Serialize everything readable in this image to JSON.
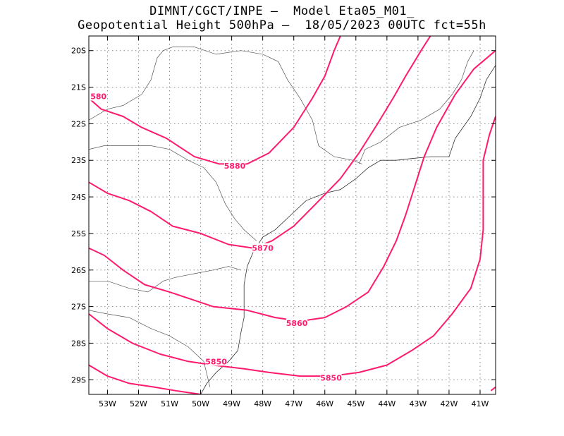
{
  "header": {
    "line1": "DIMNT/CGCT/INPE –  Model Eta05_M01_",
    "line2": "Geopotential Height 500hPa –  18/05/2023 00UTC fct=55h"
  },
  "map": {
    "lon_range": [
      -53.6,
      -40.5
    ],
    "lat_range": [
      -29.4,
      -19.6
    ],
    "grid": "dotted",
    "lon_ticks": [
      {
        "value": -53,
        "label": "53W"
      },
      {
        "value": -52,
        "label": "52W"
      },
      {
        "value": -51,
        "label": "51W"
      },
      {
        "value": -50,
        "label": "50W"
      },
      {
        "value": -49,
        "label": "49W"
      },
      {
        "value": -48,
        "label": "48W"
      },
      {
        "value": -47,
        "label": "47W"
      },
      {
        "value": -46,
        "label": "46W"
      },
      {
        "value": -45,
        "label": "45W"
      },
      {
        "value": -44,
        "label": "44W"
      },
      {
        "value": -43,
        "label": "43W"
      },
      {
        "value": -42,
        "label": "42W"
      },
      {
        "value": -41,
        "label": "41W"
      }
    ],
    "lat_ticks": [
      {
        "value": -20,
        "label": "20S"
      },
      {
        "value": -21,
        "label": "21S"
      },
      {
        "value": -22,
        "label": "22S"
      },
      {
        "value": -23,
        "label": "23S"
      },
      {
        "value": -24,
        "label": "24S"
      },
      {
        "value": -25,
        "label": "25S"
      },
      {
        "value": -26,
        "label": "26S"
      },
      {
        "value": -27,
        "label": "27S"
      },
      {
        "value": -28,
        "label": "28S"
      },
      {
        "value": -29,
        "label": "29S"
      }
    ],
    "contour_color": "#ff1a6e",
    "contours": [
      {
        "points": [
          [
            -53.6,
            -21.3
          ],
          [
            -53.2,
            -21.6
          ],
          [
            -52.5,
            -21.8
          ],
          [
            -51.9,
            -22.1
          ],
          [
            -51.1,
            -22.4
          ],
          [
            -50.2,
            -22.9
          ],
          [
            -49.4,
            -23.1
          ],
          [
            -48.5,
            -23.1
          ],
          [
            -47.8,
            -22.8
          ],
          [
            -47.0,
            -22.1
          ],
          [
            -46.4,
            -21.3
          ],
          [
            -46.0,
            -20.7
          ],
          [
            -45.7,
            -20.0
          ],
          [
            -45.5,
            -19.6
          ]
        ],
        "labels": [
          {
            "text": "5880",
            "lon": -48.9,
            "lat": -23.15
          }
        ]
      },
      {
        "points": [
          [
            -53.6,
            -23.6
          ],
          [
            -53.0,
            -23.9
          ],
          [
            -52.3,
            -24.1
          ],
          [
            -51.6,
            -24.4
          ],
          [
            -50.9,
            -24.8
          ],
          [
            -50.0,
            -25.0
          ],
          [
            -49.1,
            -25.3
          ],
          [
            -48.3,
            -25.4
          ],
          [
            -47.7,
            -25.2
          ],
          [
            -47.0,
            -24.8
          ],
          [
            -46.3,
            -24.2
          ],
          [
            -45.5,
            -23.5
          ],
          [
            -44.9,
            -22.8
          ],
          [
            -44.3,
            -22.0
          ],
          [
            -43.8,
            -21.3
          ],
          [
            -43.4,
            -20.7
          ],
          [
            -42.9,
            -20.0
          ],
          [
            -42.6,
            -19.6
          ]
        ],
        "labels": [
          {
            "text": "5870",
            "lon": -48.0,
            "lat": -25.4
          }
        ]
      },
      {
        "points": [
          [
            -53.6,
            -25.4
          ],
          [
            -53.1,
            -25.6
          ],
          [
            -52.5,
            -26.0
          ],
          [
            -51.8,
            -26.4
          ],
          [
            -51.0,
            -26.6
          ],
          [
            -50.3,
            -26.8
          ],
          [
            -49.6,
            -27.0
          ],
          [
            -48.5,
            -27.1
          ],
          [
            -47.6,
            -27.3
          ],
          [
            -46.8,
            -27.4
          ],
          [
            -46.0,
            -27.3
          ],
          [
            -45.3,
            -27.0
          ],
          [
            -44.6,
            -26.6
          ],
          [
            -44.1,
            -25.9
          ],
          [
            -43.7,
            -25.2
          ],
          [
            -43.4,
            -24.5
          ],
          [
            -43.1,
            -23.7
          ],
          [
            -42.8,
            -22.9
          ],
          [
            -42.4,
            -22.1
          ],
          [
            -41.8,
            -21.2
          ],
          [
            -41.2,
            -20.5
          ],
          [
            -40.5,
            -20.0
          ]
        ],
        "labels": [
          {
            "text": "5860",
            "lon": -46.9,
            "lat": -27.45
          }
        ]
      },
      {
        "points": [
          [
            -53.6,
            -27.2
          ],
          [
            -53.0,
            -27.6
          ],
          [
            -52.2,
            -28.0
          ],
          [
            -51.3,
            -28.3
          ],
          [
            -50.4,
            -28.5
          ],
          [
            -49.6,
            -28.6
          ],
          [
            -48.6,
            -28.7
          ],
          [
            -47.8,
            -28.8
          ],
          [
            -46.8,
            -28.9
          ],
          [
            -45.8,
            -28.9
          ],
          [
            -44.9,
            -28.8
          ],
          [
            -44.0,
            -28.6
          ],
          [
            -43.2,
            -28.2
          ],
          [
            -42.5,
            -27.8
          ],
          [
            -41.9,
            -27.2
          ],
          [
            -41.3,
            -26.5
          ],
          [
            -41.0,
            -25.7
          ],
          [
            -40.9,
            -24.9
          ],
          [
            -40.9,
            -23.9
          ],
          [
            -40.9,
            -23.0
          ],
          [
            -40.7,
            -22.3
          ],
          [
            -40.5,
            -21.8
          ]
        ],
        "labels": [
          {
            "text": "5850",
            "lon": -49.5,
            "lat": -28.5
          },
          {
            "text": "5850",
            "lon": -45.8,
            "lat": -28.95
          }
        ]
      },
      {
        "points": [
          [
            -53.6,
            -28.6
          ],
          [
            -53.0,
            -28.9
          ],
          [
            -52.3,
            -29.1
          ],
          [
            -51.5,
            -29.2
          ],
          [
            -50.8,
            -29.3
          ],
          [
            -50.0,
            -29.4
          ]
        ],
        "labels": []
      },
      {
        "points": [
          [
            -40.65,
            -29.3
          ],
          [
            -40.5,
            -29.2
          ]
        ],
        "labels": []
      }
    ],
    "edge_labels": [
      {
        "text": "580",
        "lon": -53.55,
        "lat": -21.25
      }
    ],
    "coastline": [
      [
        -50.0,
        -29.4
      ],
      [
        -49.8,
        -29.1
      ],
      [
        -49.5,
        -28.8
      ],
      [
        -49.1,
        -28.5
      ],
      [
        -48.8,
        -28.2
      ],
      [
        -48.7,
        -27.7
      ],
      [
        -48.6,
        -27.3
      ],
      [
        -48.6,
        -26.9
      ],
      [
        -48.6,
        -26.4
      ],
      [
        -48.5,
        -25.9
      ],
      [
        -48.3,
        -25.5
      ],
      [
        -48.0,
        -25.1
      ],
      [
        -47.6,
        -24.9
      ],
      [
        -47.1,
        -24.5
      ],
      [
        -46.6,
        -24.1
      ],
      [
        -46.0,
        -23.9
      ],
      [
        -45.5,
        -23.8
      ],
      [
        -45.0,
        -23.5
      ],
      [
        -44.6,
        -23.2
      ],
      [
        -44.2,
        -23.0
      ],
      [
        -43.7,
        -23.0
      ],
      [
        -43.2,
        -22.95
      ],
      [
        -42.6,
        -22.9
      ],
      [
        -42.0,
        -22.9
      ],
      [
        -41.8,
        -22.4
      ],
      [
        -41.3,
        -21.8
      ],
      [
        -41.0,
        -21.3
      ],
      [
        -40.8,
        -20.8
      ],
      [
        -40.5,
        -20.4
      ]
    ],
    "borders": [
      [
        [
          -53.6,
          -21.9
        ],
        [
          -53.0,
          -21.6
        ],
        [
          -52.5,
          -21.5
        ],
        [
          -51.9,
          -21.2
        ],
        [
          -51.6,
          -20.8
        ],
        [
          -51.4,
          -20.2
        ],
        [
          -51.2,
          -20.0
        ],
        [
          -50.9,
          -19.9
        ],
        [
          -50.2,
          -19.9
        ],
        [
          -49.5,
          -20.1
        ],
        [
          -48.7,
          -20.0
        ],
        [
          -48.0,
          -20.1
        ],
        [
          -47.5,
          -20.3
        ],
        [
          -47.2,
          -20.8
        ],
        [
          -46.8,
          -21.3
        ],
        [
          -46.4,
          -21.9
        ],
        [
          -46.2,
          -22.6
        ],
        [
          -45.7,
          -22.9
        ],
        [
          -45.1,
          -23.0
        ],
        [
          -44.8,
          -23.1
        ]
      ],
      [
        [
          -53.6,
          -22.7
        ],
        [
          -53.1,
          -22.6
        ],
        [
          -52.6,
          -22.6
        ],
        [
          -52.1,
          -22.6
        ],
        [
          -51.6,
          -22.6
        ],
        [
          -51.0,
          -22.7
        ],
        [
          -50.4,
          -23.0
        ],
        [
          -49.9,
          -23.2
        ],
        [
          -49.5,
          -23.6
        ],
        [
          -49.2,
          -24.2
        ],
        [
          -48.9,
          -24.6
        ],
        [
          -48.6,
          -24.9
        ],
        [
          -48.2,
          -25.2
        ]
      ],
      [
        [
          -53.6,
          -26.3
        ],
        [
          -53.0,
          -26.3
        ],
        [
          -52.3,
          -26.5
        ],
        [
          -51.7,
          -26.6
        ],
        [
          -51.2,
          -26.3
        ],
        [
          -50.8,
          -26.2
        ],
        [
          -50.2,
          -26.1
        ],
        [
          -49.6,
          -26.0
        ],
        [
          -49.1,
          -25.9
        ],
        [
          -48.7,
          -26.0
        ]
      ],
      [
        [
          -53.6,
          -27.1
        ],
        [
          -53.0,
          -27.2
        ],
        [
          -52.3,
          -27.3
        ],
        [
          -51.6,
          -27.6
        ],
        [
          -51.0,
          -27.8
        ],
        [
          -50.4,
          -28.1
        ],
        [
          -49.9,
          -28.5
        ],
        [
          -49.7,
          -29.2
        ]
      ],
      [
        [
          -44.9,
          -23.1
        ],
        [
          -44.7,
          -22.7
        ],
        [
          -44.2,
          -22.5
        ],
        [
          -43.6,
          -22.1
        ],
        [
          -42.9,
          -21.9
        ],
        [
          -42.3,
          -21.6
        ],
        [
          -41.9,
          -21.2
        ],
        [
          -41.6,
          -20.8
        ],
        [
          -41.4,
          -20.3
        ],
        [
          -41.2,
          -20.0
        ]
      ]
    ]
  }
}
